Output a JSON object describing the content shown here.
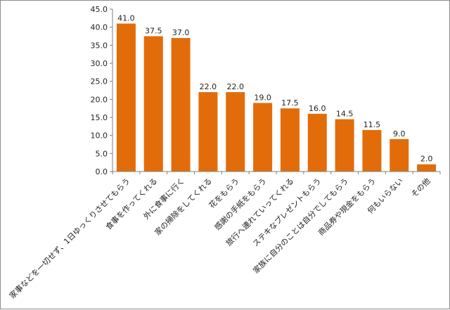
{
  "chart_data": {
    "type": "bar",
    "title": "",
    "xlabel": "",
    "ylabel": "",
    "ylim": [
      0,
      45
    ],
    "yticks": [
      "0.0",
      "5.0",
      "10.0",
      "15.0",
      "20.0",
      "25.0",
      "30.0",
      "35.0",
      "40.0",
      "45.0"
    ],
    "grid": false,
    "legend": "none",
    "bar_color": "#e36c0a",
    "categories": [
      "家事などを一切せず、1日ゆっくりさせてもらう",
      "食事を作ってくれる",
      "外に食事に行く",
      "家の掃除をしてくれる",
      "花をもらう",
      "感謝の手紙をもらう",
      "旅行へ連れていってくれる",
      "ステキなプレゼントもらう",
      "家族に自分のことは自分でしてもらう",
      "商品券や現金をもらう",
      "何もいらない",
      "その他"
    ],
    "values": [
      41.0,
      37.5,
      37.0,
      22.0,
      22.0,
      19.0,
      17.5,
      16.0,
      14.5,
      11.5,
      9.0,
      2.0
    ],
    "value_labels": [
      "41.0",
      "37.5",
      "37.0",
      "22.0",
      "22.0",
      "19.0",
      "17.5",
      "16.0",
      "14.5",
      "11.5",
      "9.0",
      "2.0"
    ]
  }
}
